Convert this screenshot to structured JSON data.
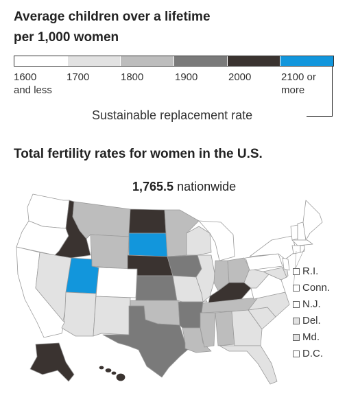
{
  "title_line1": "Average children over a lifetime",
  "title_line2": "per 1,000 women",
  "legend": {
    "bins": [
      {
        "label1": "1600",
        "label2": "and less",
        "color": "#ffffff"
      },
      {
        "label1": "1700",
        "label2": "",
        "color": "#e2e2e2"
      },
      {
        "label1": "1800",
        "label2": "",
        "color": "#bdbdbd"
      },
      {
        "label1": "1900",
        "label2": "",
        "color": "#7a7a7a"
      },
      {
        "label1": "2000",
        "label2": "",
        "color": "#3a3330"
      },
      {
        "label1": "2100 or",
        "label2": "more",
        "color": "#1296dc"
      }
    ],
    "replacement_label": "Sustainable replacement rate"
  },
  "subtitle": "Total fertility rates for women in the U.S.",
  "national": {
    "value": "1,765.5",
    "suffix": "nationwide"
  },
  "small_states": [
    {
      "label": "R.I.",
      "color": "#ffffff"
    },
    {
      "label": "Conn.",
      "color": "#ffffff"
    },
    {
      "label": "N.J.",
      "color": "#ffffff"
    },
    {
      "label": "Del.",
      "color": "#e2e2e2"
    },
    {
      "label": "Md.",
      "color": "#e2e2e2"
    },
    {
      "label": "D.C.",
      "color": "#ffffff"
    }
  ],
  "colors": {
    "bin_1600": "#ffffff",
    "bin_1700": "#e2e2e2",
    "bin_1800": "#bdbdbd",
    "bin_1900": "#7a7a7a",
    "bin_2000": "#3a3330",
    "bin_2100": "#1296dc",
    "border": "#9a9a9a"
  }
}
